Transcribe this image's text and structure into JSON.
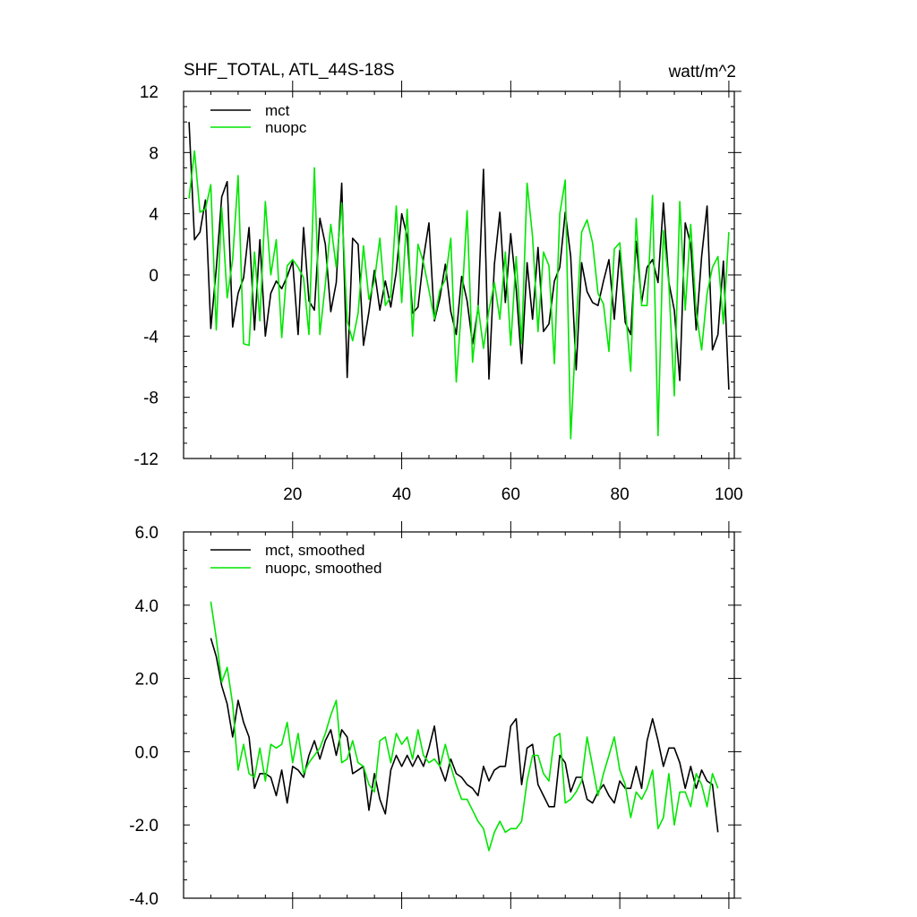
{
  "chart_data": [
    {
      "type": "line",
      "title_left": "SHF_TOTAL, ATL_44S-18S",
      "title_right": "watt/m^2",
      "xlabel": "",
      "ylabel": "",
      "xlim": [
        0,
        101
      ],
      "ylim": [
        -12,
        12
      ],
      "xticks": [
        20,
        40,
        60,
        80,
        100
      ],
      "xtick_labels": [
        "20",
        "40",
        "60",
        "80",
        "100"
      ],
      "yticks": [
        -12,
        -8,
        -4,
        0,
        4,
        8,
        12
      ],
      "ytick_labels": [
        "-12",
        "-8",
        "-4",
        "0",
        "4",
        "8",
        "12"
      ],
      "legend_position": "top-left",
      "grid": false,
      "x": [
        1,
        2,
        3,
        4,
        5,
        6,
        7,
        8,
        9,
        10,
        11,
        12,
        13,
        14,
        15,
        16,
        17,
        18,
        19,
        20,
        21,
        22,
        23,
        24,
        25,
        26,
        27,
        28,
        29,
        30,
        31,
        32,
        33,
        34,
        35,
        36,
        37,
        38,
        39,
        40,
        41,
        42,
        43,
        44,
        45,
        46,
        47,
        48,
        49,
        50,
        51,
        52,
        53,
        54,
        55,
        56,
        57,
        58,
        59,
        60,
        61,
        62,
        63,
        64,
        65,
        66,
        67,
        68,
        69,
        70,
        71,
        72,
        73,
        74,
        75,
        76,
        77,
        78,
        79,
        80,
        81,
        82,
        83,
        84,
        85,
        86,
        87,
        88,
        89,
        90,
        91,
        92,
        93,
        94,
        95,
        96,
        97,
        98,
        99,
        100
      ],
      "series": [
        {
          "name": "mct",
          "color": "#000000",
          "values": [
            10.0,
            2.3,
            2.8,
            4.9,
            -3.5,
            0.4,
            5.1,
            6.1,
            -3.4,
            -1.2,
            -0.2,
            3.1,
            -3.6,
            2.3,
            -4.0,
            -1.2,
            -0.4,
            -0.9,
            -0.1,
            0.9,
            -3.9,
            3.1,
            -1.7,
            -2.3,
            3.7,
            2.0,
            -2.4,
            -0.5,
            6.0,
            -6.7,
            2.4,
            2.0,
            -4.6,
            -2.4,
            0.3,
            -2.3,
            -0.4,
            -2.1,
            0.2,
            4.0,
            2.5,
            -2.5,
            -2.1,
            1.1,
            3.4,
            -3.0,
            -1.5,
            0.7,
            -2.4,
            -3.9,
            -0.1,
            -1.7,
            -4.5,
            -2.2,
            6.9,
            -6.8,
            0.7,
            4.1,
            -1.8,
            2.7,
            -0.9,
            -5.8,
            0.8,
            -2.9,
            1.8,
            -3.7,
            -3.2,
            -0.4,
            0.5,
            4.1,
            1.2,
            -6.2,
            0.8,
            -1.1,
            -1.8,
            -2.0,
            -0.4,
            1.0,
            -2.9,
            1.6,
            -3.1,
            -3.9,
            2.2,
            -1.8,
            0.5,
            1.0,
            -0.5,
            4.7,
            -0.5,
            -2.3,
            -6.9,
            3.4,
            2.0,
            -3.6,
            1.2,
            4.5,
            -4.9,
            -3.9,
            0.9,
            -7.5
          ]
        },
        {
          "name": "nuopc",
          "color": "#00e600",
          "values": [
            5.0,
            8.1,
            4.1,
            4.3,
            5.9,
            -3.6,
            4.4,
            -1.5,
            1.0,
            6.5,
            -4.5,
            -4.6,
            1.5,
            -3.0,
            4.8,
            0.0,
            2.3,
            -4.1,
            0.6,
            1.0,
            0.5,
            -0.2,
            -3.9,
            7.0,
            -3.9,
            -0.6,
            3.3,
            0.5,
            4.7,
            -3.0,
            -4.3,
            -2.5,
            1.9,
            -1.6,
            -0.4,
            2.4,
            -2.0,
            -1.4,
            4.5,
            -1.8,
            4.3,
            -4.0,
            2.0,
            0.8,
            -1.0,
            -2.9,
            -1.0,
            -0.3,
            2.4,
            -7.0,
            -2.0,
            4.2,
            -5.7,
            -2.0,
            -4.8,
            -2.3,
            -0.5,
            -2.9,
            1.5,
            -4.6,
            1.2,
            -4.5,
            6.0,
            2.5,
            -3.7,
            1.5,
            0.6,
            -5.8,
            4.0,
            6.2,
            -10.7,
            -3.3,
            2.8,
            3.6,
            2.1,
            -1.2,
            -1.9,
            -5.0,
            1.7,
            2.1,
            -2.1,
            -6.3,
            3.7,
            -2.0,
            -2.0,
            5.2,
            -10.5,
            2.9,
            -0.6,
            -7.9,
            4.8,
            -2.3,
            3.3,
            -2.4,
            -4.9,
            -1.2,
            0.5,
            1.2,
            -3.2,
            2.8
          ]
        }
      ]
    },
    {
      "type": "line",
      "title": "",
      "xlabel": "",
      "ylabel": "",
      "xlim": [
        0,
        101
      ],
      "ylim": [
        -4.0,
        6.0
      ],
      "xticks": [
        20,
        40,
        60,
        80,
        100
      ],
      "yticks": [
        -4.0,
        -2.0,
        0.0,
        2.0,
        4.0,
        6.0
      ],
      "ytick_labels": [
        "-4.0",
        "-2.0",
        "0.0",
        "2.0",
        "4.0",
        "6.0"
      ],
      "legend_position": "top-left",
      "grid": false,
      "x": [
        5,
        6,
        7,
        8,
        9,
        10,
        11,
        12,
        13,
        14,
        15,
        16,
        17,
        18,
        19,
        20,
        21,
        22,
        23,
        24,
        25,
        26,
        27,
        28,
        29,
        30,
        31,
        32,
        33,
        34,
        35,
        36,
        37,
        38,
        39,
        40,
        41,
        42,
        43,
        44,
        45,
        46,
        47,
        48,
        49,
        50,
        51,
        52,
        53,
        54,
        55,
        56,
        57,
        58,
        59,
        60,
        61,
        62,
        63,
        64,
        65,
        66,
        67,
        68,
        69,
        70,
        71,
        72,
        73,
        74,
        75,
        76,
        77,
        78,
        79,
        80,
        81,
        82,
        83,
        84,
        85,
        86,
        87,
        88,
        89,
        90,
        91,
        92,
        93,
        94,
        95,
        96,
        97,
        98
      ],
      "series": [
        {
          "name": "mct, smoothed",
          "color": "#000000",
          "values": [
            3.1,
            2.6,
            1.8,
            1.3,
            0.4,
            1.4,
            0.8,
            0.4,
            -1.0,
            -0.6,
            -0.6,
            -0.7,
            -1.2,
            -0.5,
            -1.4,
            -0.4,
            -0.5,
            -0.7,
            -0.1,
            0.3,
            -0.2,
            0.3,
            0.6,
            -0.1,
            0.6,
            0.4,
            -0.6,
            -0.5,
            -0.4,
            -1.6,
            -0.6,
            -1.3,
            -1.7,
            -0.5,
            -0.1,
            -0.4,
            -0.1,
            -0.4,
            -0.1,
            -0.4,
            0.1,
            0.7,
            -0.4,
            -0.8,
            -0.2,
            -0.6,
            -0.7,
            -0.9,
            -1.0,
            -1.2,
            -0.4,
            -0.8,
            -0.5,
            -0.4,
            -0.4,
            0.7,
            0.9,
            -0.9,
            0.1,
            0.2,
            -0.9,
            -1.2,
            -1.5,
            -1.5,
            -0.1,
            -0.3,
            -1.1,
            -0.7,
            -0.7,
            -1.3,
            -1.4,
            -1.1,
            -0.9,
            -1.2,
            -1.4,
            -0.8,
            -1.0,
            -1.0,
            -0.4,
            -1.0,
            0.3,
            0.9,
            0.3,
            -0.4,
            0.1,
            0.1,
            -0.3,
            -1.0,
            -0.4,
            -1.0,
            -0.5,
            -0.8,
            -0.9,
            -2.2
          ]
        },
        {
          "name": "nuopc, smoothed",
          "color": "#00e600",
          "values": [
            4.1,
            3.1,
            1.9,
            2.3,
            1.3,
            -0.5,
            0.2,
            -0.6,
            -0.7,
            0.1,
            -0.8,
            0.2,
            0.1,
            0.2,
            0.8,
            -0.3,
            0.5,
            -0.6,
            -0.3,
            -0.1,
            0.1,
            0.5,
            1.0,
            1.4,
            -0.3,
            -0.2,
            0.3,
            -0.3,
            -0.4,
            -0.9,
            -1.1,
            0.3,
            0.4,
            -0.3,
            0.5,
            0.2,
            0.4,
            -0.2,
            0.6,
            -0.1,
            -0.3,
            -0.2,
            -0.4,
            0.2,
            -0.4,
            -0.9,
            -1.3,
            -1.3,
            -1.6,
            -1.9,
            -2.1,
            -2.7,
            -2.2,
            -1.9,
            -2.2,
            -2.1,
            -2.1,
            -1.9,
            -0.8,
            -0.1,
            -0.1,
            -0.6,
            -0.8,
            0.4,
            0.5,
            -1.4,
            -1.3,
            -1.1,
            -0.8,
            0.4,
            -0.4,
            -1.2,
            -0.6,
            -0.1,
            0.4,
            -0.5,
            -0.9,
            -1.8,
            -1.1,
            -1.3,
            -1.0,
            -0.5,
            -2.1,
            -1.8,
            -0.6,
            -2.0,
            -1.1,
            -1.1,
            -1.5,
            -0.6,
            -0.9,
            -1.5,
            -0.6,
            -1.0
          ]
        }
      ]
    }
  ]
}
